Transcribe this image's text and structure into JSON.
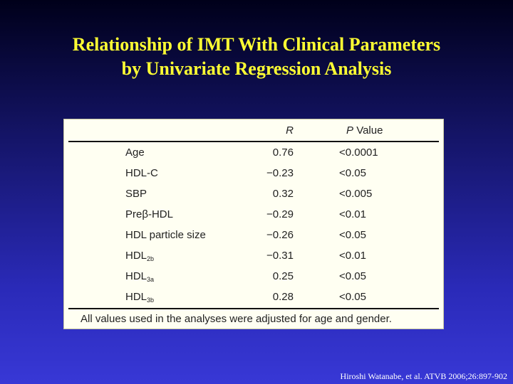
{
  "title": [
    "Relationship of IMT With Clinical Parameters",
    "by Univariate Regression Analysis"
  ],
  "table": {
    "header": {
      "r": "R",
      "p_italic": "P",
      "p_rest": "Value"
    },
    "rows": [
      {
        "name": "Age",
        "r": "0.76",
        "p": "<0.0001"
      },
      {
        "name": "HDL-C",
        "r": "−0.23",
        "p": "<0.05"
      },
      {
        "name": "SBP",
        "r": "0.32",
        "p": "<0.005"
      },
      {
        "name": "Preβ-HDL",
        "r": "−0.29",
        "p": "<0.01"
      },
      {
        "name": "HDL particle size",
        "r": "−0.26",
        "p": "<0.05"
      },
      {
        "name": "HDL",
        "sub": "2b",
        "r": "−0.31",
        "p": "<0.01"
      },
      {
        "name": "HDL",
        "sub": "3a",
        "r": "0.25",
        "p": "<0.05"
      },
      {
        "name": "HDL",
        "sub": "3b",
        "r": "0.28",
        "p": "<0.05"
      }
    ],
    "footnote": "All values used in the analyses were adjusted for age and gender."
  },
  "citation": "Hiroshi Watanabe, et al.  ATVB 2006;26:897-902"
}
